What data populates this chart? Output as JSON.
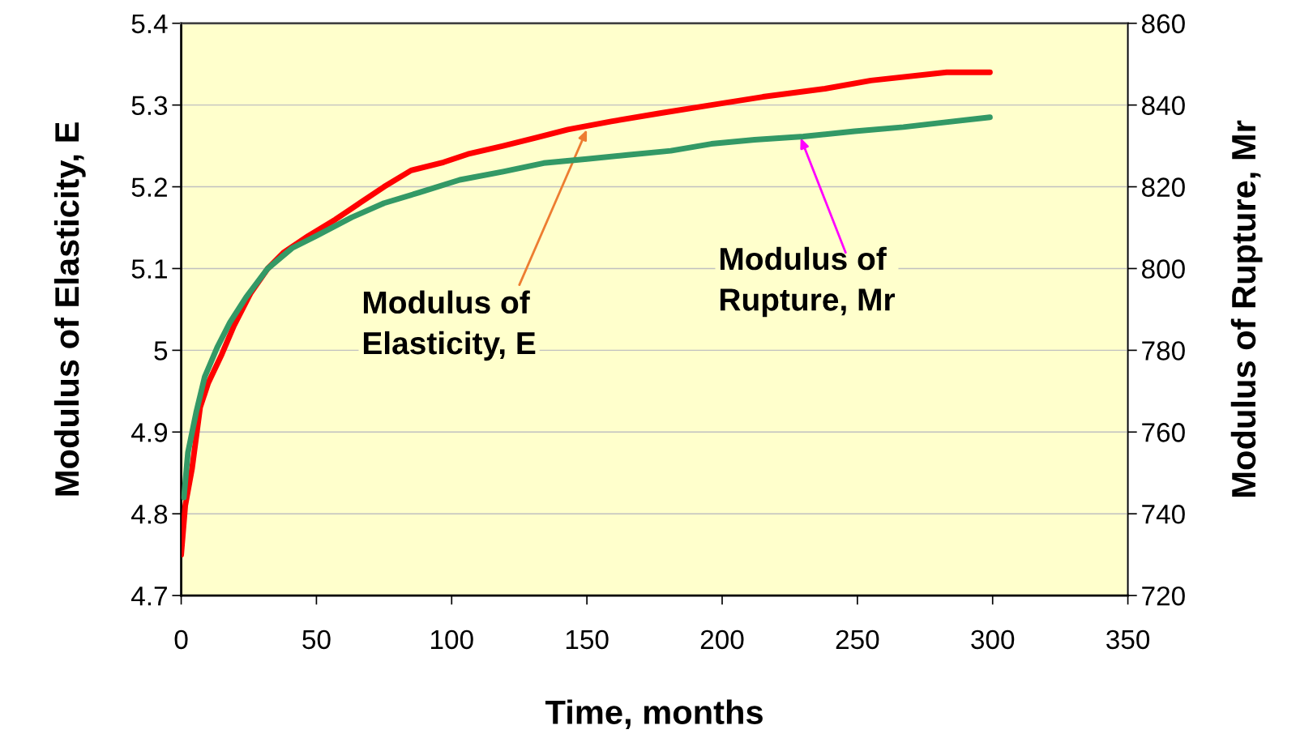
{
  "chart_data": {
    "type": "line",
    "xlabel": "Time, months",
    "ylabel": "Modulus of Elasticity, E",
    "y2label": "Modulus of Rupture, Mr",
    "xlim": [
      0,
      350
    ],
    "xticks": [
      0,
      50,
      100,
      150,
      200,
      250,
      300,
      350
    ],
    "ylim": [
      4.7,
      5.4
    ],
    "yticks": [
      4.7,
      4.8,
      4.9,
      5,
      5.1,
      5.2,
      5.3,
      5.4
    ],
    "y2lim": [
      720,
      860
    ],
    "y2ticks": [
      720,
      740,
      760,
      780,
      800,
      820,
      840,
      860
    ],
    "grid": "y",
    "marker": "none",
    "line_style": "solid",
    "series": [
      {
        "color": "#ff0000",
        "x": [
          0,
          1.5,
          4,
          7,
          10,
          15,
          19.5,
          25.7,
          32,
          38,
          47,
          57,
          66,
          75,
          85,
          97,
          106,
          119,
          131,
          143,
          159,
          177,
          196,
          215,
          238,
          255,
          283,
          299
        ],
        "values": [
          4.75,
          4.81,
          4.855,
          4.93,
          4.96,
          4.995,
          5.03,
          5.07,
          5.1,
          5.12,
          5.14,
          5.16,
          5.18,
          5.2,
          5.22,
          5.23,
          5.24,
          5.25,
          5.26,
          5.27,
          5.28,
          5.29,
          5.3,
          5.31,
          5.32,
          5.33,
          5.34,
          5.34
        ]
      },
      {
        "color": "#339966",
        "axis": "y2",
        "x": [
          1,
          2.5,
          5.6,
          8.7,
          13.3,
          18,
          24,
          32,
          41,
          50,
          63,
          75,
          88,
          103,
          119,
          134,
          150,
          165,
          181,
          196,
          212,
          230,
          249,
          267,
          280,
          299
        ],
        "values": [
          744,
          755,
          765,
          773.5,
          780.7,
          786.8,
          793,
          800,
          805,
          808,
          812.5,
          816,
          818.6,
          821.7,
          823.7,
          825.8,
          826.8,
          827.8,
          828.8,
          830.5,
          831.5,
          832.3,
          833.6,
          834.6,
          835.6,
          837
        ]
      }
    ],
    "annotations": [
      {
        "text": "Modulus of\nElasticity, E",
        "x": 150,
        "y": 5.27
      },
      {
        "text": "Modulus of\nRupture, Mr",
        "x": 229,
        "y": 5.26
      }
    ]
  }
}
